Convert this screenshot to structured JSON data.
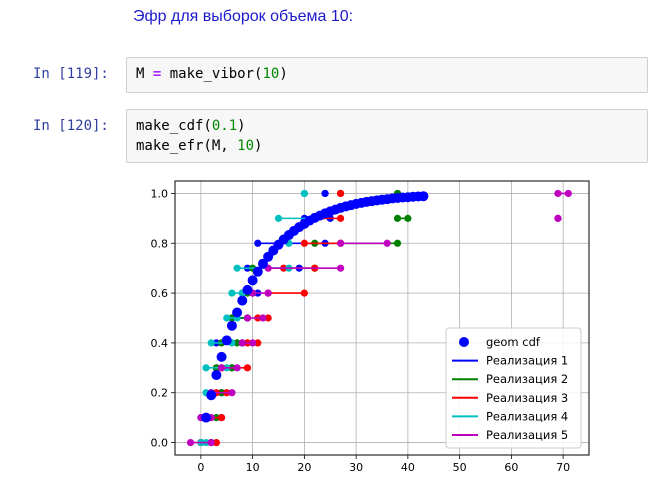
{
  "notebook": {
    "heading": "Эфр для выборок объема 10:",
    "cells": [
      {
        "prompt": "In [119]:",
        "code": {
          "var": "M",
          "op": "=",
          "fn": "make_vibor(",
          "arg": "10",
          "close": ")"
        }
      },
      {
        "prompt": "In [120]:",
        "line1": {
          "fn": "make_cdf(",
          "arg": "0.1",
          "close": ")"
        },
        "line2": {
          "fn": "make_efr(M, ",
          "arg": "10",
          "close": ")"
        }
      }
    ]
  },
  "chart_data": {
    "type": "scatter",
    "title": "",
    "xlabel": "",
    "ylabel": "",
    "xlim": [
      -5,
      75
    ],
    "ylim": [
      -0.05,
      1.05
    ],
    "xticks": [
      0,
      10,
      20,
      30,
      40,
      50,
      60,
      70
    ],
    "yticks": [
      0.0,
      0.2,
      0.4,
      0.6,
      0.8,
      1.0
    ],
    "grid": true,
    "legend_position": "lower-right",
    "legend": [
      {
        "label": "geom cdf",
        "color": "#0000ff",
        "kind": "marker"
      },
      {
        "label": "Реализация 1",
        "color": "#0000ff",
        "kind": "line"
      },
      {
        "label": "Реализация 2",
        "color": "#008000",
        "kind": "line"
      },
      {
        "label": "Реализация 3",
        "color": "#ff0000",
        "kind": "line"
      },
      {
        "label": "Реализация 4",
        "color": "#00bfbf",
        "kind": "line"
      },
      {
        "label": "Реализация 5",
        "color": "#bf00bf",
        "kind": "line"
      }
    ],
    "geom_cdf": {
      "color": "#0000ff",
      "x": [
        1,
        2,
        3,
        4,
        5,
        6,
        7,
        8,
        9,
        10,
        11,
        12,
        13,
        14,
        15,
        16,
        17,
        18,
        19,
        20,
        21,
        22,
        23,
        24,
        25,
        26,
        27,
        28,
        29,
        30,
        31,
        32,
        33,
        34,
        35,
        36,
        37,
        38,
        39,
        40,
        41,
        42,
        43
      ],
      "y": [
        0.1,
        0.19,
        0.271,
        0.344,
        0.41,
        0.469,
        0.522,
        0.57,
        0.613,
        0.651,
        0.686,
        0.718,
        0.746,
        0.771,
        0.794,
        0.815,
        0.833,
        0.85,
        0.865,
        0.878,
        0.891,
        0.902,
        0.911,
        0.92,
        0.928,
        0.935,
        0.942,
        0.948,
        0.953,
        0.958,
        0.962,
        0.966,
        0.969,
        0.972,
        0.975,
        0.977,
        0.98,
        0.982,
        0.984,
        0.985,
        0.987,
        0.988,
        0.989
      ]
    },
    "realizations": [
      {
        "name": "Реализация 1",
        "color": "#0000ff",
        "x": [
          0,
          1,
          2,
          3,
          3,
          6,
          8,
          9,
          11,
          20,
          24
        ],
        "y": [
          0.0,
          0.1,
          0.2,
          0.3,
          0.4,
          0.5,
          0.6,
          0.7,
          0.8,
          0.9,
          1.0
        ]
      },
      {
        "name": "Реализация 2",
        "color": "#008000",
        "x": [
          0,
          1,
          2,
          3,
          4,
          6,
          9,
          10,
          22,
          38,
          38
        ],
        "y": [
          0.0,
          0.1,
          0.2,
          0.3,
          0.4,
          0.5,
          0.6,
          0.7,
          0.8,
          0.9,
          1.0
        ]
      },
      {
        "name": "Реализация 3",
        "color": "#ff0000",
        "x": [
          0,
          1,
          3,
          4,
          9,
          11,
          13,
          16,
          20,
          22,
          27
        ],
        "y": [
          0.0,
          0.1,
          0.2,
          0.3,
          0.4,
          0.5,
          0.6,
          0.7,
          0.8,
          0.9,
          1.0
        ]
      },
      {
        "name": "Реализация 4",
        "color": "#00bfbf",
        "x": [
          0,
          0,
          1,
          1,
          2,
          5,
          6,
          7,
          17,
          15,
          20
        ],
        "y": [
          0.0,
          0.1,
          0.2,
          0.3,
          0.4,
          0.5,
          0.6,
          0.7,
          0.8,
          0.9,
          1.0
        ]
      },
      {
        "name": "Реализация 5",
        "color": "#bf00bf",
        "x": [
          -2,
          0,
          2,
          4,
          8,
          9,
          10,
          13,
          27,
          69,
          69
        ],
        "y": [
          0.0,
          0.1,
          0.2,
          0.3,
          0.4,
          0.5,
          0.6,
          0.7,
          0.8,
          0.9,
          1.0
        ]
      }
    ],
    "step_ends": [
      [
        [
          2,
          0.1
        ],
        [
          4,
          0.2
        ],
        [
          4,
          0.3
        ],
        [
          6,
          0.4
        ],
        [
          8,
          0.5
        ],
        [
          9,
          0.6
        ],
        [
          11,
          0.7
        ],
        [
          19,
          0.8
        ],
        [
          24,
          0.9
        ],
        [
          25,
          1.0
        ]
      ],
      [
        [
          2,
          0.1
        ],
        [
          3,
          0.2
        ],
        [
          4,
          0.3
        ],
        [
          6,
          0.4
        ],
        [
          7,
          0.5
        ],
        [
          9,
          0.6
        ],
        [
          10,
          0.7
        ],
        [
          22,
          0.8
        ],
        [
          38,
          0.9
        ],
        [
          40,
          1.0
        ]
      ],
      [
        [
          3,
          0.1
        ],
        [
          4,
          0.2
        ],
        [
          5,
          0.3
        ],
        [
          9,
          0.4
        ],
        [
          11,
          0.5
        ],
        [
          13,
          0.6
        ],
        [
          20,
          0.7
        ],
        [
          22,
          0.8
        ],
        [
          27,
          0.9
        ],
        [
          27,
          1.0
        ]
      ],
      [
        [
          1,
          0.1
        ],
        [
          1,
          0.2
        ],
        [
          2,
          0.3
        ],
        [
          5,
          0.4
        ],
        [
          6,
          0.5
        ],
        [
          7,
          0.6
        ],
        [
          8,
          0.7
        ],
        [
          17,
          0.8
        ],
        [
          15,
          0.9
        ],
        [
          22,
          1.0
        ]
      ],
      [
        [
          2,
          0.0
        ],
        [
          2,
          0.1
        ],
        [
          6,
          0.2
        ],
        [
          7,
          0.3
        ],
        [
          10,
          0.4
        ],
        [
          12,
          0.5
        ],
        [
          13,
          0.6
        ],
        [
          27,
          0.7
        ],
        [
          36,
          0.8
        ],
        [
          69,
          0.9
        ],
        [
          71,
          1.0
        ]
      ]
    ]
  }
}
